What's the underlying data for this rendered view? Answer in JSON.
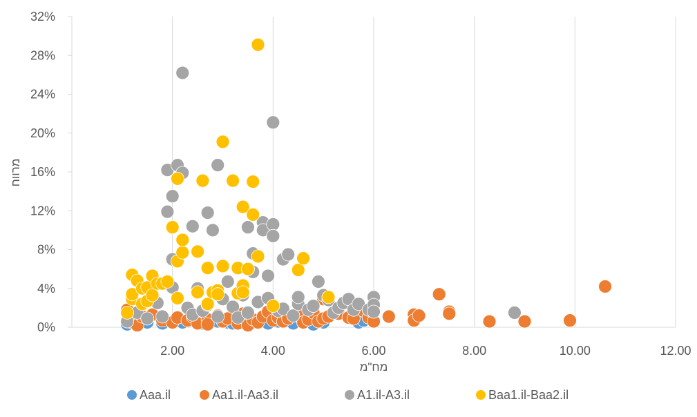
{
  "chart_data": {
    "type": "scatter",
    "title": "",
    "xlabel": "מח\"מ",
    "ylabel": "מרווח",
    "xlim": [
      0,
      12
    ],
    "ylim": [
      0,
      32
    ],
    "x_ticks": [
      2,
      4,
      6,
      8,
      10,
      12
    ],
    "x_tick_labels": [
      "2.00",
      "4.00",
      "6.00",
      "8.00",
      "10.00",
      "12.00"
    ],
    "y_ticks": [
      0,
      4,
      8,
      12,
      16,
      20,
      24,
      28,
      32
    ],
    "y_tick_labels": [
      "0%",
      "4%",
      "8%",
      "12%",
      "16%",
      "20%",
      "24%",
      "28%",
      "32%"
    ],
    "grid": {
      "x": true,
      "y": false
    },
    "legend_position": "bottom",
    "series": [
      {
        "name": "Aaa.il",
        "color": "#5B9BD5",
        "points": [
          [
            1.1,
            0.3
          ],
          [
            1.3,
            0.4
          ],
          [
            1.5,
            0.5
          ],
          [
            1.8,
            0.4
          ],
          [
            2.2,
            0.5
          ],
          [
            2.6,
            0.4
          ],
          [
            2.9,
            0.6
          ],
          [
            3.1,
            0.5
          ],
          [
            3.2,
            0.4
          ],
          [
            3.4,
            0.6
          ],
          [
            3.6,
            0.5
          ],
          [
            3.9,
            0.4
          ],
          [
            4.1,
            0.6
          ],
          [
            4.4,
            0.4
          ],
          [
            4.6,
            0.5
          ],
          [
            4.8,
            0.3
          ],
          [
            5.0,
            0.5
          ],
          [
            5.7,
            0.5
          ],
          [
            5.8,
            0.7
          ]
        ]
      },
      {
        "name": "Aa1.il-Aa3.il",
        "color": "#ED7D31",
        "points": [
          [
            1.1,
            1.8
          ],
          [
            1.2,
            0.5
          ],
          [
            1.3,
            0.2
          ],
          [
            1.4,
            1.1
          ],
          [
            1.5,
            0.9
          ],
          [
            1.6,
            1.3
          ],
          [
            1.8,
            0.7
          ],
          [
            2.0,
            0.5
          ],
          [
            2.1,
            1.0
          ],
          [
            2.3,
            0.7
          ],
          [
            2.4,
            1.1
          ],
          [
            2.5,
            0.4
          ],
          [
            2.7,
            0.8
          ],
          [
            2.7,
            0.3
          ],
          [
            2.9,
            1.2
          ],
          [
            3.0,
            0.6
          ],
          [
            3.1,
            0.9
          ],
          [
            3.3,
            0.4
          ],
          [
            3.4,
            1.4
          ],
          [
            3.5,
            0.2
          ],
          [
            3.6,
            0.8
          ],
          [
            3.7,
            0.5
          ],
          [
            3.8,
            1.1
          ],
          [
            3.9,
            1.6
          ],
          [
            4.0,
            0.7
          ],
          [
            4.1,
            1.0
          ],
          [
            4.2,
            0.6
          ],
          [
            4.3,
            0.9
          ],
          [
            4.5,
            1.2
          ],
          [
            4.6,
            0.5
          ],
          [
            4.7,
            0.8
          ],
          [
            4.8,
            1.5
          ],
          [
            4.9,
            0.6
          ],
          [
            5.0,
            2.9
          ],
          [
            5.0,
            0.9
          ],
          [
            5.1,
            1.1
          ],
          [
            5.3,
            1.4
          ],
          [
            5.5,
            1.0
          ],
          [
            5.6,
            0.9
          ],
          [
            5.8,
            1.7
          ],
          [
            5.9,
            1.0
          ],
          [
            6.0,
            0.6
          ],
          [
            6.3,
            1.1
          ],
          [
            6.8,
            1.3
          ],
          [
            6.8,
            0.7
          ],
          [
            6.9,
            1.2
          ],
          [
            7.3,
            3.4
          ],
          [
            7.5,
            1.6
          ],
          [
            7.5,
            1.4
          ],
          [
            8.3,
            0.6
          ],
          [
            9.0,
            0.6
          ],
          [
            9.9,
            0.7
          ],
          [
            10.6,
            4.2
          ]
        ]
      },
      {
        "name": "A1.il-A3.il",
        "color": "#A5A5A5",
        "points": [
          [
            1.1,
            0.6
          ],
          [
            1.3,
            1.5
          ],
          [
            1.5,
            0.9
          ],
          [
            1.7,
            2.5
          ],
          [
            1.8,
            1.1
          ],
          [
            1.9,
            16.2
          ],
          [
            1.9,
            11.9
          ],
          [
            2.0,
            13.5
          ],
          [
            2.0,
            4.1
          ],
          [
            2.0,
            7.0
          ],
          [
            2.1,
            16.7
          ],
          [
            2.2,
            15.9
          ],
          [
            2.2,
            26.2
          ],
          [
            2.3,
            2.0
          ],
          [
            2.4,
            1.3
          ],
          [
            2.4,
            10.4
          ],
          [
            2.5,
            4.0
          ],
          [
            2.6,
            1.7
          ],
          [
            2.7,
            11.8
          ],
          [
            2.7,
            2.3
          ],
          [
            2.8,
            10.0
          ],
          [
            2.9,
            16.7
          ],
          [
            2.9,
            1.1
          ],
          [
            3.0,
            2.9
          ],
          [
            3.1,
            4.7
          ],
          [
            3.2,
            2.1
          ],
          [
            3.3,
            1.0
          ],
          [
            3.4,
            3.3
          ],
          [
            3.5,
            10.3
          ],
          [
            3.5,
            1.5
          ],
          [
            3.6,
            7.6
          ],
          [
            3.6,
            5.7
          ],
          [
            3.7,
            2.6
          ],
          [
            3.8,
            10.8
          ],
          [
            3.8,
            10.0
          ],
          [
            3.9,
            3.0
          ],
          [
            3.9,
            5.3
          ],
          [
            4.0,
            21.1
          ],
          [
            4.0,
            10.6
          ],
          [
            4.0,
            9.4
          ],
          [
            4.1,
            1.7
          ],
          [
            4.2,
            1.9
          ],
          [
            4.2,
            7.0
          ],
          [
            4.3,
            7.5
          ],
          [
            4.4,
            1.2
          ],
          [
            4.5,
            2.4
          ],
          [
            4.5,
            3.1
          ],
          [
            4.7,
            1.8
          ],
          [
            4.8,
            2.2
          ],
          [
            4.9,
            4.7
          ],
          [
            5.0,
            3.3
          ],
          [
            5.1,
            2.8
          ],
          [
            5.2,
            1.5
          ],
          [
            5.3,
            2.0
          ],
          [
            5.4,
            2.5
          ],
          [
            5.5,
            2.9
          ],
          [
            5.6,
            1.8
          ],
          [
            5.7,
            2.4
          ],
          [
            5.9,
            1.8
          ],
          [
            6.0,
            3.1
          ],
          [
            6.0,
            2.3
          ],
          [
            6.0,
            1.6
          ],
          [
            8.8,
            1.5
          ]
        ]
      },
      {
        "name": "Baa1.il-Baa2.il",
        "color": "#FFC000",
        "points": [
          [
            1.1,
            1.5
          ],
          [
            1.2,
            2.9
          ],
          [
            1.2,
            3.4
          ],
          [
            1.2,
            5.4
          ],
          [
            1.3,
            4.8
          ],
          [
            1.4,
            4.0
          ],
          [
            1.4,
            2.4
          ],
          [
            1.5,
            2.7
          ],
          [
            1.5,
            4.1
          ],
          [
            1.6,
            5.3
          ],
          [
            1.6,
            3.3
          ],
          [
            1.7,
            4.5
          ],
          [
            1.8,
            4.5
          ],
          [
            1.9,
            4.7
          ],
          [
            2.0,
            10.3
          ],
          [
            2.1,
            15.3
          ],
          [
            2.1,
            6.8
          ],
          [
            2.1,
            3.0
          ],
          [
            2.2,
            7.7
          ],
          [
            2.2,
            9.0
          ],
          [
            2.5,
            7.8
          ],
          [
            2.5,
            3.6
          ],
          [
            2.6,
            15.1
          ],
          [
            2.7,
            6.1
          ],
          [
            2.7,
            2.4
          ],
          [
            2.8,
            3.6
          ],
          [
            2.9,
            3.8
          ],
          [
            2.9,
            3.4
          ],
          [
            3.0,
            19.1
          ],
          [
            3.0,
            6.3
          ],
          [
            3.2,
            15.1
          ],
          [
            3.3,
            6.1
          ],
          [
            3.3,
            3.5
          ],
          [
            3.4,
            12.4
          ],
          [
            3.4,
            4.3
          ],
          [
            3.4,
            3.6
          ],
          [
            3.5,
            6.0
          ],
          [
            3.5,
            6.0
          ],
          [
            3.6,
            15.0
          ],
          [
            3.6,
            11.6
          ],
          [
            3.7,
            29.1
          ],
          [
            3.7,
            7.3
          ],
          [
            4.0,
            2.2
          ],
          [
            4.5,
            5.9
          ],
          [
            4.6,
            7.1
          ],
          [
            5.1,
            3.1
          ]
        ]
      }
    ]
  }
}
